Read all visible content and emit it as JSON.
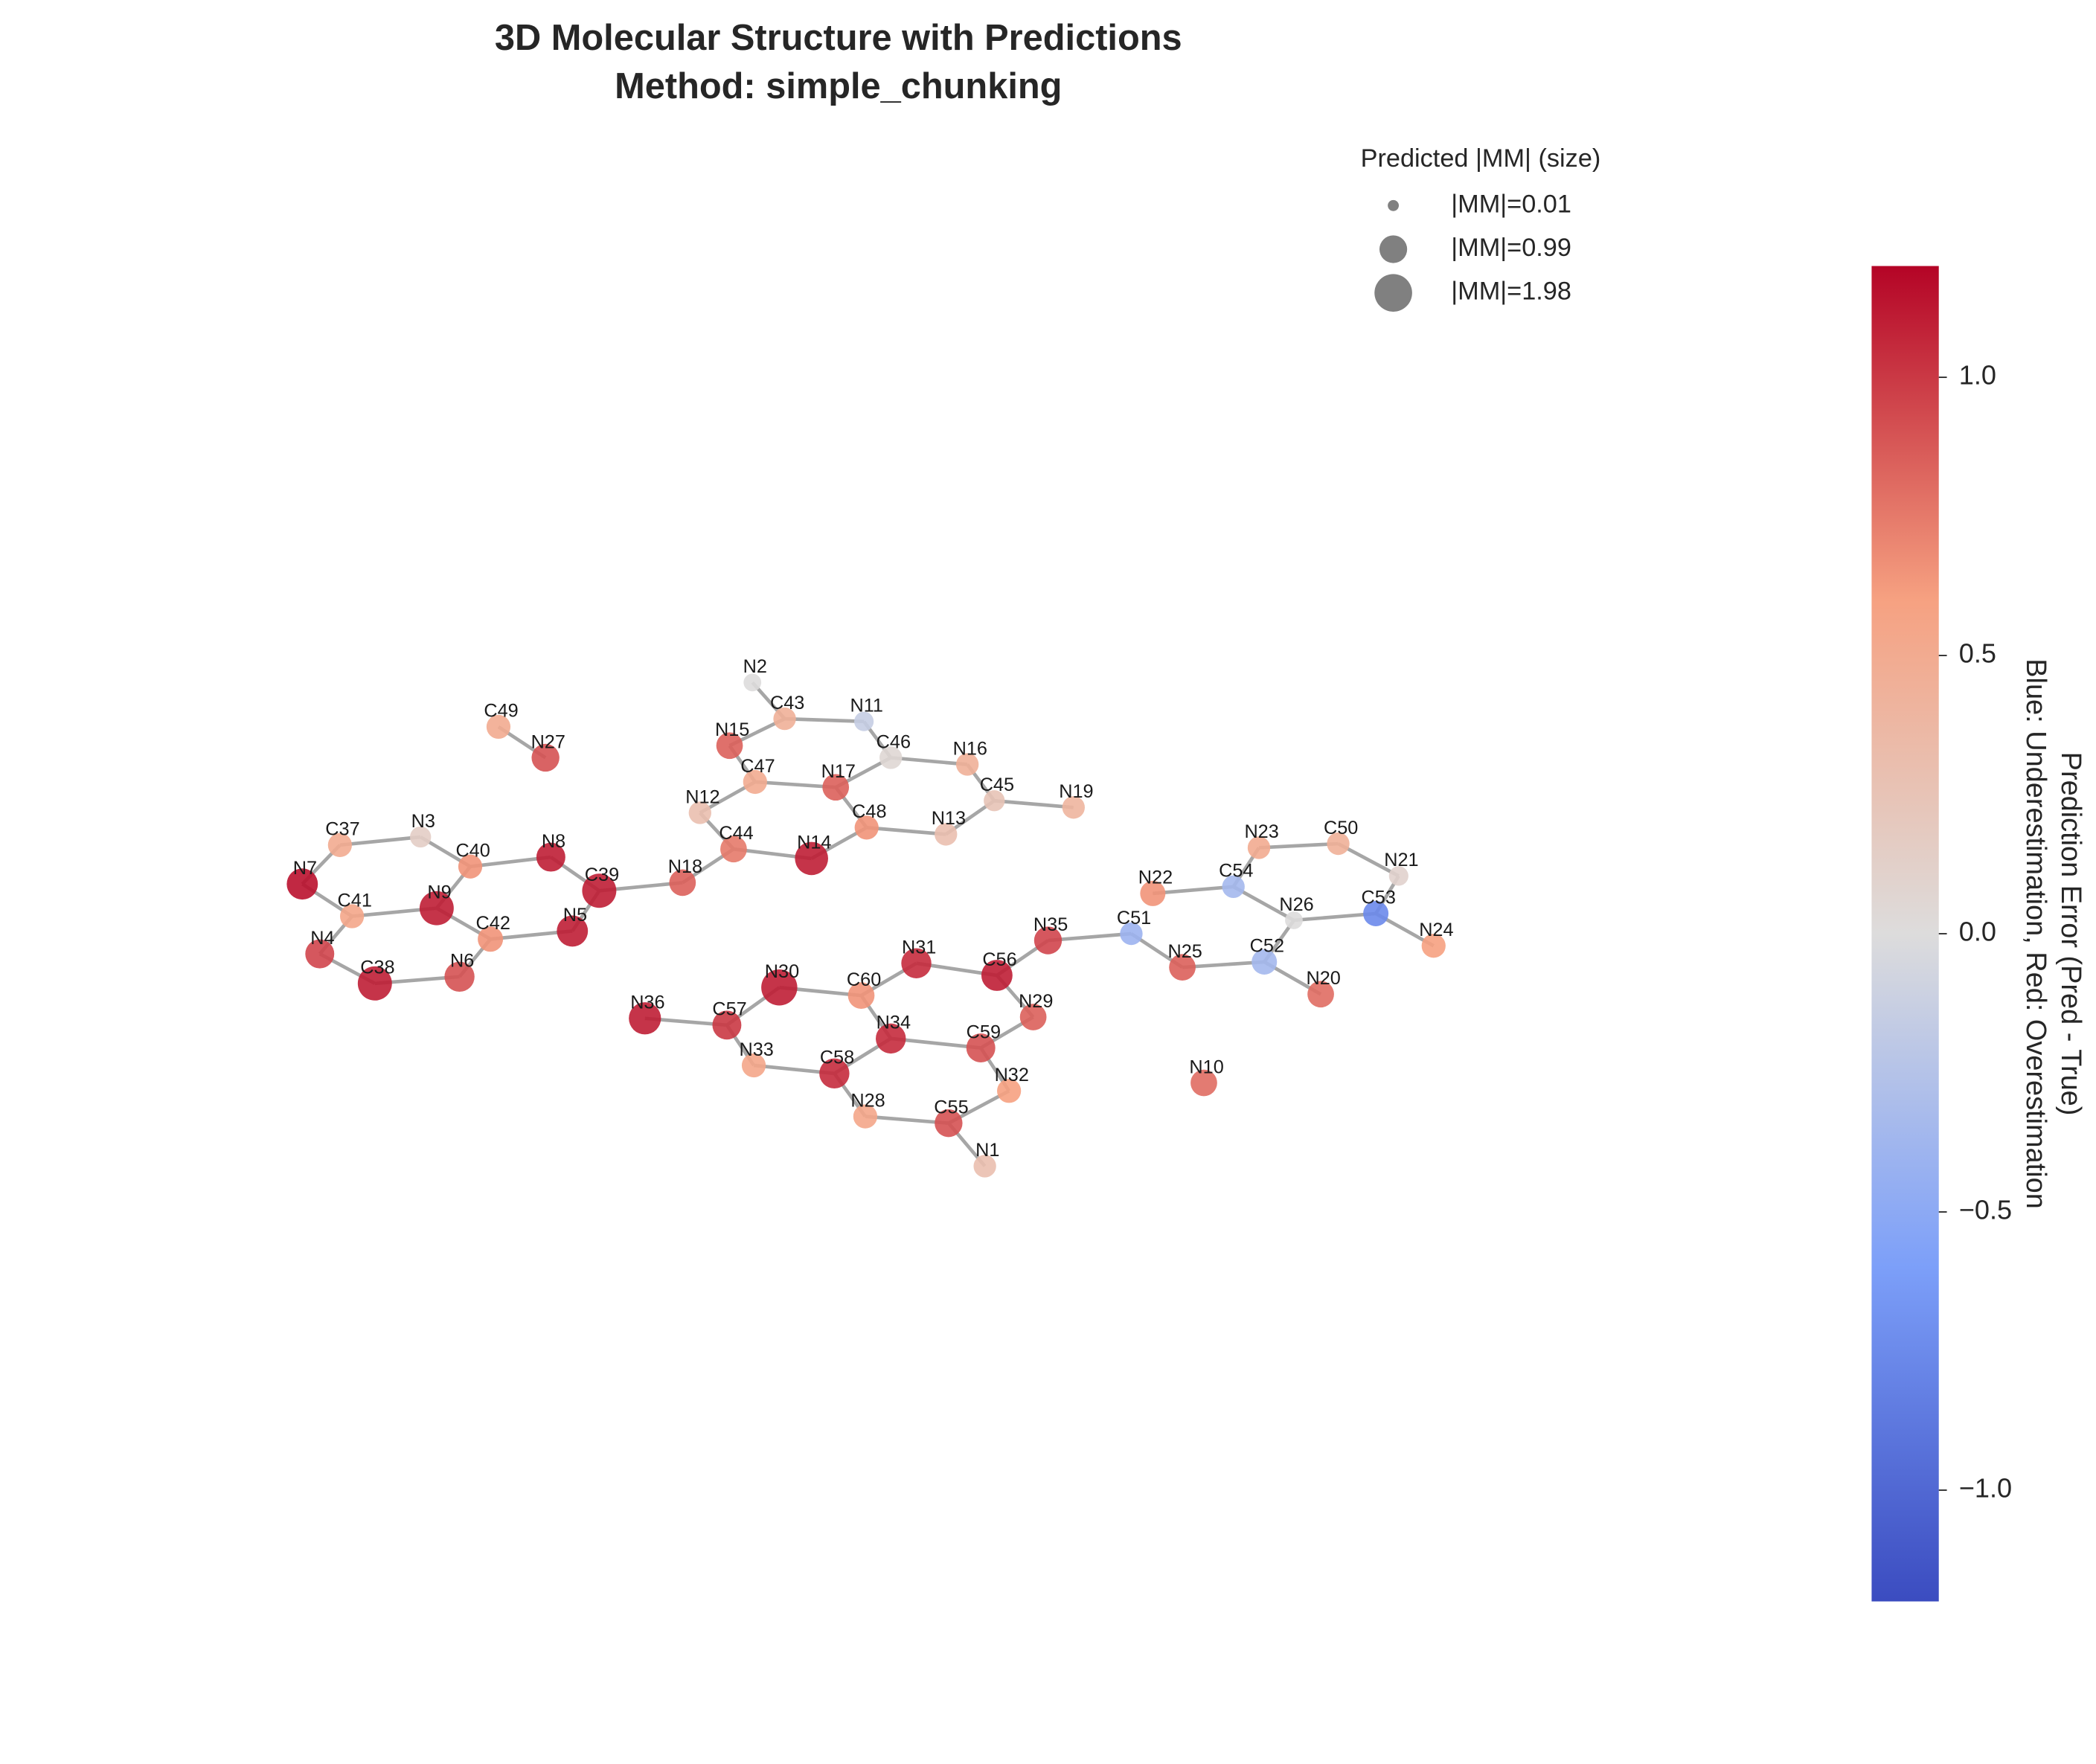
{
  "chart_data": {
    "type": "molecule",
    "title": "3D Molecular Structure with Predictions",
    "subtitle": "Method: simple_chunking",
    "labels": [
      "N2",
      "C43",
      "N11",
      "N15",
      "C46",
      "N16",
      "C47",
      "N17",
      "C45",
      "N19",
      "N12",
      "C48",
      "N13",
      "C44",
      "N14",
      "N18",
      "C49",
      "N27",
      "C37",
      "N3",
      "C40",
      "N8",
      "N7",
      "C39",
      "N9",
      "C41",
      "C42",
      "N5",
      "N4",
      "C38",
      "N6",
      "N36",
      "C57",
      "N30",
      "C60",
      "N31",
      "C56",
      "N35",
      "N29",
      "N34",
      "C59",
      "N33",
      "C58",
      "N32",
      "N28",
      "C55",
      "N1",
      "C51",
      "N22",
      "C54",
      "N23",
      "C50",
      "N21",
      "N26",
      "C53",
      "N24",
      "N25",
      "C52",
      "N20",
      "N10"
    ],
    "x": [
      -0.9,
      -0.66,
      -0.07,
      -1.07,
      0.13,
      0.7,
      -0.88,
      -0.28,
      0.9,
      1.49,
      -1.29,
      -0.05,
      0.54,
      -1.04,
      -0.46,
      -1.42,
      -2.79,
      -2.44,
      -3.97,
      -3.37,
      -3.0,
      -2.4,
      -4.25,
      -2.04,
      -3.25,
      -3.88,
      -2.85,
      -2.24,
      -4.12,
      -3.71,
      -3.08,
      -1.7,
      -1.09,
      -0.7,
      -0.09,
      0.32,
      0.92,
      1.3,
      1.19,
      0.13,
      0.8,
      -0.89,
      -0.29,
      1.01,
      -0.06,
      0.56,
      0.83,
      1.92,
      2.08,
      2.68,
      2.87,
      3.46,
      3.91,
      3.13,
      3.74,
      4.17,
      2.3,
      2.91,
      3.33,
      2.46
    ],
    "y": [
      2.12,
      1.85,
      1.83,
      1.65,
      1.56,
      1.51,
      1.38,
      1.34,
      1.24,
      1.19,
      1.15,
      1.04,
      0.99,
      0.88,
      0.81,
      0.63,
      1.79,
      1.56,
      0.91,
      0.97,
      0.75,
      0.82,
      0.62,
      0.57,
      0.44,
      0.38,
      0.21,
      0.27,
      0.1,
      -0.12,
      -0.07,
      -0.38,
      -0.43,
      -0.15,
      -0.21,
      0.03,
      -0.06,
      0.2,
      -0.37,
      -0.53,
      -0.6,
      -0.73,
      -0.79,
      -0.92,
      -1.11,
      -1.16,
      -1.48,
      0.25,
      0.55,
      0.6,
      0.89,
      0.92,
      0.68,
      0.35,
      0.4,
      0.16,
      0.0,
      0.04,
      -0.2,
      -0.86
    ],
    "values": [
      0.0,
      0.45,
      -0.15,
      0.85,
      0.05,
      0.45,
      0.5,
      0.85,
      0.25,
      0.4,
      0.3,
      0.65,
      0.3,
      0.75,
      1.1,
      0.85,
      0.5,
      0.9,
      0.5,
      0.15,
      0.65,
      1.1,
      1.15,
      1.1,
      1.1,
      0.55,
      0.65,
      1.1,
      0.95,
      1.1,
      0.9,
      1.1,
      1.0,
      1.1,
      0.65,
      1.05,
      1.1,
      0.95,
      0.85,
      1.05,
      0.9,
      0.55,
      1.05,
      0.6,
      0.55,
      0.9,
      0.3,
      -0.4,
      0.65,
      -0.35,
      0.5,
      0.45,
      0.1,
      0.0,
      -0.75,
      0.6,
      0.85,
      -0.35,
      0.8,
      0.8
    ],
    "sizes": [
      0.3,
      0.6,
      0.4,
      0.9,
      0.6,
      0.6,
      0.7,
      0.9,
      0.5,
      0.6,
      0.6,
      0.7,
      0.6,
      0.9,
      1.5,
      0.9,
      0.7,
      1.0,
      0.7,
      0.5,
      0.7,
      1.1,
      1.3,
      1.6,
      1.6,
      0.7,
      0.8,
      1.3,
      1.1,
      1.6,
      1.2,
      1.4,
      1.1,
      1.8,
      0.9,
      1.2,
      1.3,
      1.0,
      0.9,
      1.2,
      1.1,
      0.7,
      1.2,
      0.7,
      0.7,
      1.0,
      0.6,
      0.6,
      0.8,
      0.6,
      0.6,
      0.6,
      0.4,
      0.3,
      0.8,
      0.7,
      0.9,
      0.8,
      0.9,
      0.9
    ],
    "bonds": [
      [
        0,
        1
      ],
      [
        1,
        3
      ],
      [
        1,
        2
      ],
      [
        2,
        4
      ],
      [
        3,
        6
      ],
      [
        6,
        7
      ],
      [
        7,
        4
      ],
      [
        4,
        5
      ],
      [
        5,
        8
      ],
      [
        8,
        9
      ],
      [
        7,
        11
      ],
      [
        11,
        12
      ],
      [
        12,
        8
      ],
      [
        6,
        10
      ],
      [
        10,
        13
      ],
      [
        13,
        14
      ],
      [
        14,
        11
      ],
      [
        13,
        15
      ],
      [
        15,
        23
      ],
      [
        16,
        17
      ],
      [
        18,
        19
      ],
      [
        19,
        20
      ],
      [
        20,
        21
      ],
      [
        21,
        23
      ],
      [
        18,
        22
      ],
      [
        22,
        25
      ],
      [
        25,
        24
      ],
      [
        24,
        20
      ],
      [
        24,
        26
      ],
      [
        26,
        27
      ],
      [
        27,
        23
      ],
      [
        25,
        28
      ],
      [
        28,
        29
      ],
      [
        29,
        30
      ],
      [
        30,
        26
      ],
      [
        31,
        32
      ],
      [
        32,
        33
      ],
      [
        33,
        34
      ],
      [
        34,
        35
      ],
      [
        35,
        36
      ],
      [
        36,
        37
      ],
      [
        36,
        38
      ],
      [
        38,
        40
      ],
      [
        34,
        39
      ],
      [
        39,
        40
      ],
      [
        32,
        41
      ],
      [
        41,
        42
      ],
      [
        42,
        39
      ],
      [
        42,
        44
      ],
      [
        44,
        45
      ],
      [
        45,
        43
      ],
      [
        43,
        40
      ],
      [
        45,
        46
      ],
      [
        37,
        47
      ],
      [
        47,
        56
      ],
      [
        56,
        57
      ],
      [
        57,
        58
      ],
      [
        57,
        53
      ],
      [
        53,
        49
      ],
      [
        49,
        48
      ],
      [
        49,
        50
      ],
      [
        50,
        51
      ],
      [
        51,
        52
      ],
      [
        52,
        54
      ],
      [
        54,
        53
      ],
      [
        54,
        55
      ]
    ],
    "xlim": [
      -5,
      5
    ],
    "ylim": [
      -4,
      4
    ],
    "bond_color": "#a6a6a6",
    "colormap": [
      "#3b4cc0",
      "#7c9ff9",
      "#dddcdc",
      "#f6a181",
      "#b40426"
    ],
    "clim": [
      -1.2,
      1.2
    ],
    "colorbar_ticks": [
      {
        "value": -1.0,
        "label": "−1.0"
      },
      {
        "value": -0.5,
        "label": "−0.5"
      },
      {
        "value": 0.0,
        "label": "0.0"
      },
      {
        "value": 0.5,
        "label": "0.5"
      },
      {
        "value": 1.0,
        "label": "1.0"
      }
    ],
    "colorbar_label": "Prediction Error (Pred - True)",
    "colorbar_label2": "Blue: Underestimation, Red: Overestimation",
    "legend": {
      "title": "Predicted |MM| (size)",
      "color": "#808080",
      "entries": [
        {
          "label": "|MM|=0.01",
          "value": 0.01
        },
        {
          "label": "|MM|=0.99",
          "value": 0.99
        },
        {
          "label": "|MM|=1.98",
          "value": 1.98
        }
      ]
    }
  }
}
